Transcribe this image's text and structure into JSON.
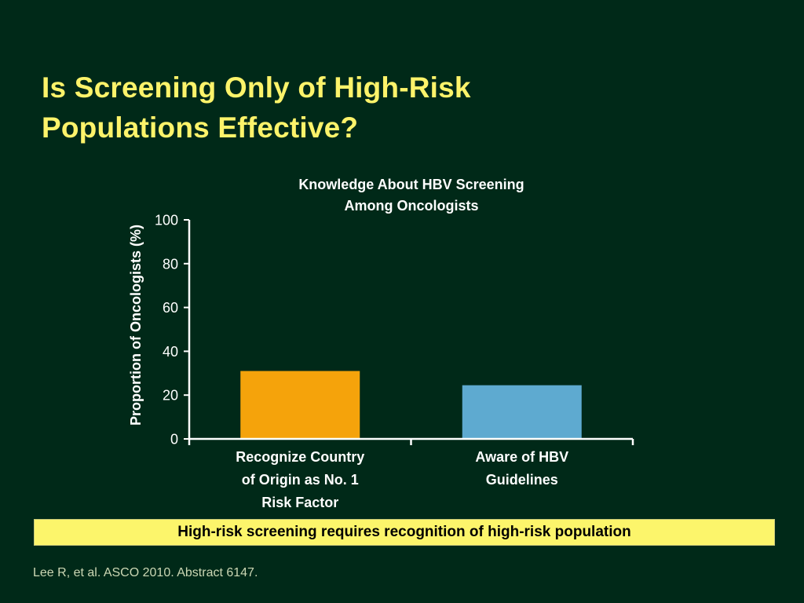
{
  "slide": {
    "title_lines": [
      "Is Screening Only of High-Risk",
      "Populations Effective?"
    ],
    "callout": "High-risk screening requires recognition of high-risk population",
    "citation": "Lee R, et al. ASCO 2010. Abstract 6147."
  },
  "colors": {
    "background": "#002918",
    "title": "#fdf36a",
    "text": "#ffffff",
    "callout_fill": "#fcf56b",
    "bar_orange": "#f5a30b",
    "bar_blue": "#5eaad0",
    "citation": "#ccd7b4"
  },
  "chart_data": {
    "type": "bar",
    "title_lines": [
      "Knowledge About HBV Screening",
      "Among Oncologists"
    ],
    "ylabel": "Proportion of Oncologists (%)",
    "xlabel": "",
    "ylim": [
      0,
      100
    ],
    "yticks": [
      0,
      20,
      40,
      60,
      80,
      100
    ],
    "categories": [
      [
        "Recognize Country",
        "of Origin as No. 1",
        "Risk Factor"
      ],
      [
        "Aware of HBV",
        "Guidelines"
      ]
    ],
    "values": [
      31,
      24.5
    ],
    "bar_colors": [
      "#f5a30b",
      "#5eaad0"
    ],
    "grid": false,
    "legend": "none"
  }
}
